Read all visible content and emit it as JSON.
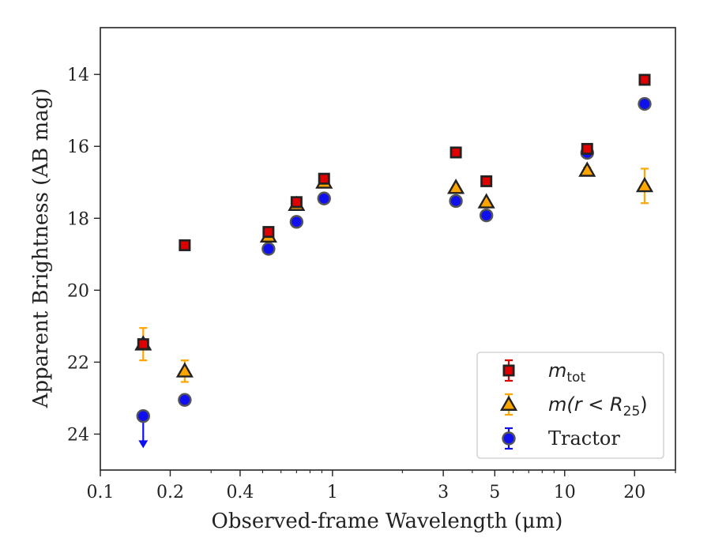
{
  "chart_data": {
    "type": "scatter",
    "xlabel": "Observed-frame Wavelength (μm)",
    "ylabel": "Apparent Brightness (AB mag)",
    "xscale": "log",
    "xlim": [
      0.1,
      30
    ],
    "ylim": [
      25,
      12.7
    ],
    "y_inverted": true,
    "grid": false,
    "legend_position": "lower-right",
    "x_ticks": [
      {
        "value": 0.1,
        "label": "0.1"
      },
      {
        "value": 0.2,
        "label": "0.2"
      },
      {
        "value": 0.4,
        "label": "0.4"
      },
      {
        "value": 1,
        "label": "1"
      },
      {
        "value": 3,
        "label": "3"
      },
      {
        "value": 5,
        "label": "5"
      },
      {
        "value": 10,
        "label": "10"
      },
      {
        "value": 20,
        "label": "20"
      }
    ],
    "y_ticks": [
      {
        "value": 14,
        "label": "14"
      },
      {
        "value": 16,
        "label": "16"
      },
      {
        "value": 18,
        "label": "18"
      },
      {
        "value": 20,
        "label": "20"
      },
      {
        "value": 22,
        "label": "22"
      },
      {
        "value": 24,
        "label": "24"
      }
    ],
    "series": [
      {
        "name": "m_tot",
        "legend_label": "m",
        "legend_sub": "tot",
        "marker": "square",
        "color": "#e00000",
        "edge_color": "#222222",
        "error_color": "#e00000",
        "points": [
          {
            "x": 0.153,
            "y": 21.5,
            "err": 0.1
          },
          {
            "x": 0.231,
            "y": 18.75,
            "err": 0.05
          },
          {
            "x": 0.53,
            "y": 18.38,
            "err": 0.08
          },
          {
            "x": 0.7,
            "y": 17.55,
            "err": 0.08
          },
          {
            "x": 0.92,
            "y": 16.9,
            "err": 0.08
          },
          {
            "x": 3.4,
            "y": 16.17,
            "err": 0.05
          },
          {
            "x": 4.6,
            "y": 16.97,
            "err": 0.05
          },
          {
            "x": 12.5,
            "y": 16.07,
            "err": 0.08
          },
          {
            "x": 22.1,
            "y": 14.15,
            "err": 0.05
          }
        ]
      },
      {
        "name": "m(r<R25)",
        "legend_label": "m(r < R",
        "legend_sub": "25",
        "legend_suffix": ")",
        "marker": "triangle",
        "color": "#ffa500",
        "edge_color": "#222222",
        "error_color": "#ffa500",
        "points": [
          {
            "x": 0.153,
            "y": 21.5,
            "err": 0.45
          },
          {
            "x": 0.231,
            "y": 22.25,
            "err": 0.3
          },
          {
            "x": 0.53,
            "y": 18.5,
            "err": 0.1
          },
          {
            "x": 0.7,
            "y": 17.62,
            "err": 0.08
          },
          {
            "x": 0.92,
            "y": 17.0,
            "err": 0.06
          },
          {
            "x": 3.4,
            "y": 17.15,
            "err": 0.05
          },
          {
            "x": 4.6,
            "y": 17.55,
            "err": 0.05
          },
          {
            "x": 12.5,
            "y": 16.67,
            "err": 0.08
          },
          {
            "x": 22.1,
            "y": 17.1,
            "err": 0.48
          }
        ]
      },
      {
        "name": "Tractor",
        "legend_label": "Tractor",
        "marker": "circle",
        "color": "#1010ee",
        "edge_color": "#555555",
        "error_color": "#1010ee",
        "points": [
          {
            "x": 0.153,
            "y": 23.5,
            "err": 0,
            "upper_limit": true
          },
          {
            "x": 0.231,
            "y": 23.05,
            "err": 0.06
          },
          {
            "x": 0.53,
            "y": 18.85,
            "err": 0.05
          },
          {
            "x": 0.7,
            "y": 18.1,
            "err": 0.05
          },
          {
            "x": 0.92,
            "y": 17.45,
            "err": 0.05
          },
          {
            "x": 3.4,
            "y": 17.52,
            "err": 0.05
          },
          {
            "x": 4.6,
            "y": 17.92,
            "err": 0.05
          },
          {
            "x": 12.5,
            "y": 16.18,
            "err": 0.05
          },
          {
            "x": 22.1,
            "y": 14.82,
            "err": 0.05
          }
        ]
      }
    ]
  }
}
